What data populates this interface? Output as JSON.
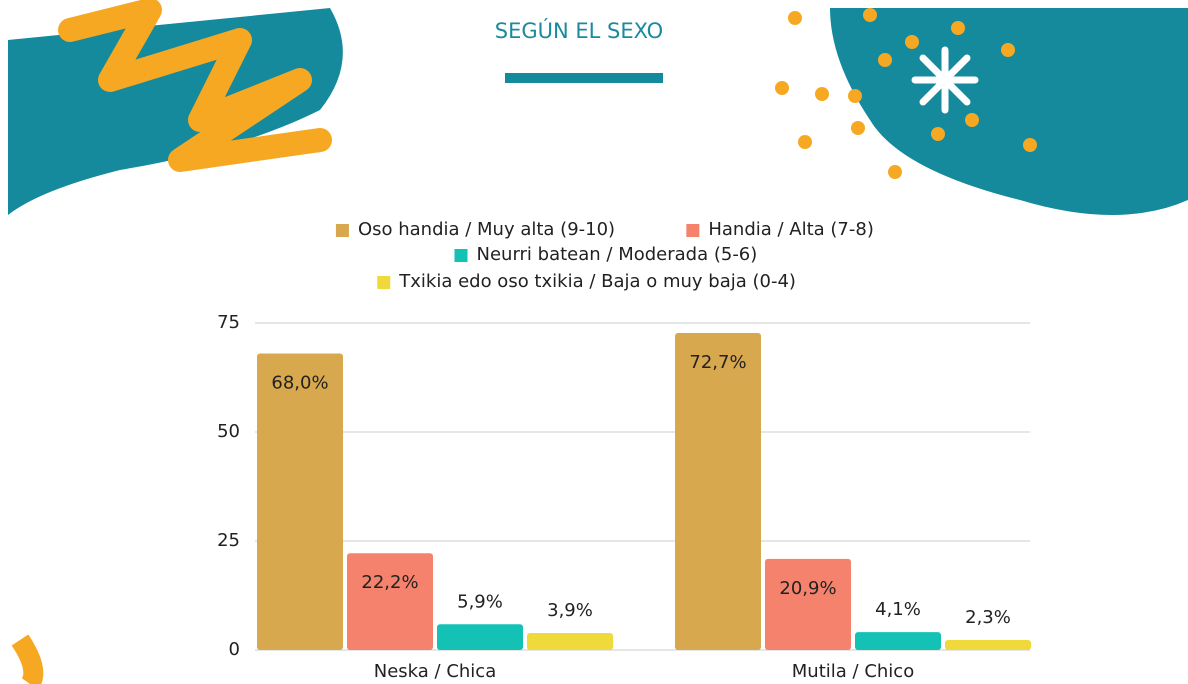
{
  "chart_data": {
    "type": "bar",
    "title": "SEGÚN EL SEXO",
    "categories": [
      "Neska / Chica",
      "Mutila / Chico"
    ],
    "series": [
      {
        "name": "Oso handia / Muy alta (9-10)",
        "color": "#d8a84e",
        "values": [
          68.0,
          72.7
        ],
        "value_labels": [
          "68,0%",
          "72,7%"
        ]
      },
      {
        "name": "Handia / Alta (7-8)",
        "color": "#f4826c",
        "values": [
          22.2,
          20.9
        ],
        "value_labels": [
          "22,2%",
          "20,9%"
        ]
      },
      {
        "name": "Neurri batean / Moderada (5-6)",
        "color": "#13c2b5",
        "values": [
          5.9,
          4.1
        ],
        "value_labels": [
          "5,9%",
          "4,1%"
        ]
      },
      {
        "name": "Txikia edo oso txikia / Baja o muy baja (0-4)",
        "color": "#f0d93a",
        "values": [
          3.9,
          2.3
        ],
        "value_labels": [
          "3,9%",
          "2,3%"
        ]
      }
    ],
    "ylim": [
      0,
      75
    ],
    "yticks": [
      0,
      25,
      50,
      75
    ],
    "grid": true
  }
}
